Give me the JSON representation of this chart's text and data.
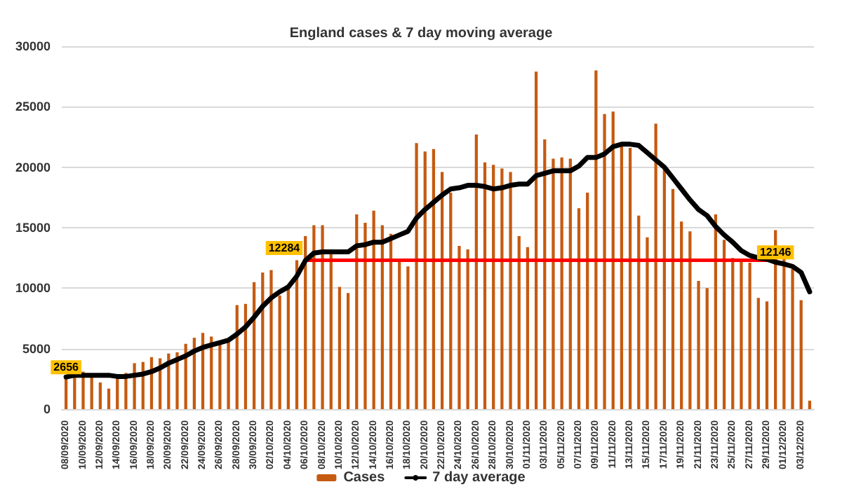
{
  "chart_data": {
    "type": "bar",
    "title": "England cases & 7 day moving average",
    "categories": [
      "08/09/2020",
      null,
      "10/09/2020",
      null,
      "12/09/2020",
      null,
      "14/09/2020",
      null,
      "16/09/2020",
      null,
      "18/09/2020",
      null,
      "20/09/2020",
      null,
      "22/09/2020",
      null,
      "24/09/2020",
      null,
      "26/09/2020",
      null,
      "28/09/2020",
      null,
      "30/09/2020",
      null,
      "02/10/2020",
      null,
      "04/10/2020",
      null,
      "06/10/2020",
      null,
      "08/10/2020",
      null,
      "10/10/2020",
      null,
      "12/10/2020",
      null,
      "14/10/2020",
      null,
      "16/10/2020",
      null,
      "18/10/2020",
      null,
      "20/10/2020",
      null,
      "22/10/2020",
      null,
      "24/10/2020",
      null,
      "26/10/2020",
      null,
      "28/10/2020",
      null,
      "30/10/2020",
      null,
      "01/11/2020",
      null,
      "03/11/2020",
      null,
      "05/11/2020",
      null,
      "07/11/2020",
      null,
      "09/11/2020",
      null,
      "11/11/2020",
      null,
      "13/11/2020",
      null,
      "15/11/2020",
      null,
      "17/11/2020",
      null,
      "19/11/2020",
      null,
      "21/11/2020",
      null,
      "23/11/2020",
      null,
      "25/11/2020",
      null,
      "27/11/2020",
      null,
      "29/11/2020",
      null,
      "01/12/2020",
      null,
      "03/12/2020",
      null
    ],
    "series": [
      {
        "name": "Cases",
        "color": "#c55a11",
        "values": [
          2800,
          2800,
          3100,
          2800,
          2200,
          1700,
          2600,
          3000,
          3800,
          3900,
          4300,
          4200,
          4600,
          4700,
          5400,
          5900,
          6300,
          6000,
          5600,
          5700,
          8600,
          8700,
          10500,
          11300,
          11500,
          9400,
          10000,
          12300,
          14300,
          15200,
          15200,
          12800,
          10100,
          9600,
          16100,
          15400,
          16400,
          15200,
          14500,
          12200,
          11800,
          22000,
          21300,
          21500,
          19600,
          17900,
          13500,
          13200,
          22700,
          20400,
          20200,
          19900,
          19600,
          14300,
          13400,
          27900,
          22300,
          20700,
          20800,
          20700,
          16600,
          17900,
          28000,
          24400,
          24600,
          21800,
          21600,
          16000,
          14200,
          23600,
          20100,
          18200,
          15500,
          14700,
          10600,
          10000,
          16100,
          14000,
          12500,
          12200,
          12100,
          9200,
          8900,
          14800,
          12400,
          11600,
          9000,
          700
        ]
      },
      {
        "name": "7 day average",
        "type": "line",
        "color": "#000000",
        "values": [
          2656,
          2800,
          2800,
          2800,
          2800,
          2800,
          2700,
          2700,
          2800,
          2900,
          3100,
          3400,
          3800,
          4100,
          4400,
          4800,
          5100,
          5300,
          5500,
          5700,
          6200,
          6800,
          7600,
          8500,
          9200,
          9700,
          10100,
          11000,
          12284,
          12900,
          13000,
          13000,
          13000,
          13000,
          13500,
          13600,
          13800,
          13800,
          14100,
          14400,
          14700,
          15800,
          16500,
          17100,
          17700,
          18200,
          18300,
          18500,
          18500,
          18400,
          18200,
          18300,
          18500,
          18600,
          18600,
          19300,
          19500,
          19700,
          19700,
          19700,
          20100,
          20800,
          20800,
          21100,
          21700,
          21900,
          21900,
          21800,
          21200,
          20600,
          20000,
          19100,
          18200,
          17300,
          16500,
          16000,
          15100,
          14400,
          13800,
          13100,
          12700,
          12500,
          12400,
          12146,
          12000,
          11800,
          11300,
          9700
        ],
        "value_labels": [
          "2656",
          null,
          null,
          null,
          null,
          null,
          null,
          null,
          null,
          null,
          null,
          null,
          null,
          null,
          null,
          null,
          null,
          null,
          null,
          null,
          null,
          null,
          null,
          null,
          null,
          null,
          null,
          null,
          "12284",
          null,
          null,
          null,
          null,
          null,
          null,
          null,
          null,
          null,
          null,
          null,
          null,
          null,
          null,
          null,
          null,
          null,
          null,
          null,
          null,
          null,
          null,
          null,
          null,
          null,
          null,
          null,
          null,
          null,
          null,
          null,
          null,
          null,
          null,
          null,
          null,
          null,
          null,
          null,
          null,
          null,
          null,
          null,
          null,
          null,
          null,
          null,
          null,
          null,
          null,
          null,
          null,
          null,
          null,
          "12146",
          null,
          null,
          null,
          null
        ]
      },
      {
        "type": "line",
        "color": "#ff0000",
        "values": [
          null,
          null,
          null,
          null,
          null,
          null,
          null,
          null,
          null,
          null,
          null,
          null,
          null,
          null,
          null,
          null,
          null,
          null,
          null,
          null,
          null,
          null,
          null,
          null,
          null,
          null,
          null,
          null,
          12300,
          null,
          null,
          null,
          null,
          null,
          null,
          null,
          null,
          null,
          null,
          null,
          null,
          null,
          null,
          null,
          null,
          null,
          null,
          null,
          null,
          null,
          null,
          null,
          null,
          null,
          null,
          null,
          null,
          null,
          null,
          null,
          null,
          null,
          null,
          null,
          null,
          null,
          null,
          null,
          null,
          null,
          null,
          null,
          null,
          null,
          null,
          null,
          null,
          null,
          null,
          null,
          null,
          null,
          null,
          12300,
          null,
          null,
          null,
          null
        ]
      }
    ],
    "ylim": [
      0,
      30000
    ],
    "yticks": [
      0,
      5000,
      10000,
      15000,
      20000,
      25000,
      30000
    ],
    "grid": "y",
    "legend": "bottom",
    "marker": "none"
  }
}
